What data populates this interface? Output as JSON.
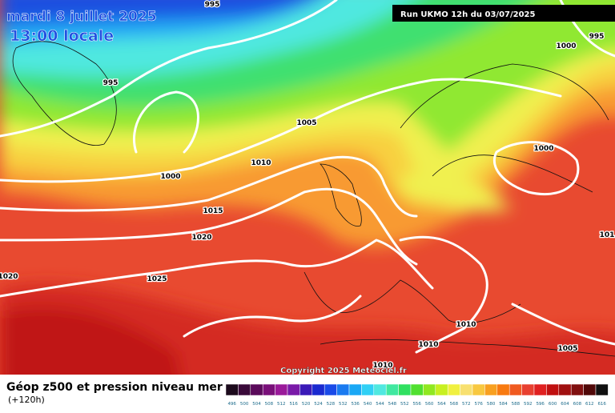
{
  "header": {
    "date": "mardi 8 juillet 2025",
    "time": "13:00 locale",
    "run": "Run UKMO 12h du 03/07/2025"
  },
  "isobar_labels": [
    995,
    995,
    1000,
    995,
    1005,
    1010,
    1000,
    1000,
    1015,
    1020,
    1020,
    1025,
    101,
    1010,
    1010,
    1005,
    1010
  ],
  "copyright": "Copyright 2025 Meteociel.fr",
  "legend": {
    "title": "Géop z500 et pression niveau mer",
    "subtitle": "(+120h)",
    "scale": [
      {
        "label": 496,
        "color": "#1c0a1c"
      },
      {
        "label": 500,
        "color": "#3a0a3a"
      },
      {
        "label": 504,
        "color": "#5a0a5a"
      },
      {
        "label": 508,
        "color": "#7a107a"
      },
      {
        "label": 512,
        "color": "#9a1a9a"
      },
      {
        "label": 516,
        "color": "#7a1aa8"
      },
      {
        "label": 520,
        "color": "#3a1ab8"
      },
      {
        "label": 524,
        "color": "#1a2ad0"
      },
      {
        "label": 528,
        "color": "#1a4ae8"
      },
      {
        "label": 532,
        "color": "#1a7af0"
      },
      {
        "label": 536,
        "color": "#1aa8f5"
      },
      {
        "label": 540,
        "color": "#30d0f5"
      },
      {
        "label": 544,
        "color": "#50e8e0"
      },
      {
        "label": 548,
        "color": "#40e8a0"
      },
      {
        "label": 552,
        "color": "#30e060"
      },
      {
        "label": 556,
        "color": "#50e030"
      },
      {
        "label": 560,
        "color": "#90e820"
      },
      {
        "label": 564,
        "color": "#c8f020"
      },
      {
        "label": 568,
        "color": "#f0f040"
      },
      {
        "label": 572,
        "color": "#f8e070"
      },
      {
        "label": 576,
        "color": "#f8c840"
      },
      {
        "label": 580,
        "color": "#f8a020"
      },
      {
        "label": 584,
        "color": "#f87a10"
      },
      {
        "label": 588,
        "color": "#f05a20"
      },
      {
        "label": 592,
        "color": "#e84030"
      },
      {
        "label": 596,
        "color": "#e02020"
      },
      {
        "label": 600,
        "color": "#c01010"
      },
      {
        "label": 604,
        "color": "#a01010"
      },
      {
        "label": 608,
        "color": "#801010"
      },
      {
        "label": 612,
        "color": "#500808"
      },
      {
        "label": 616,
        "color": "#101010"
      }
    ]
  }
}
